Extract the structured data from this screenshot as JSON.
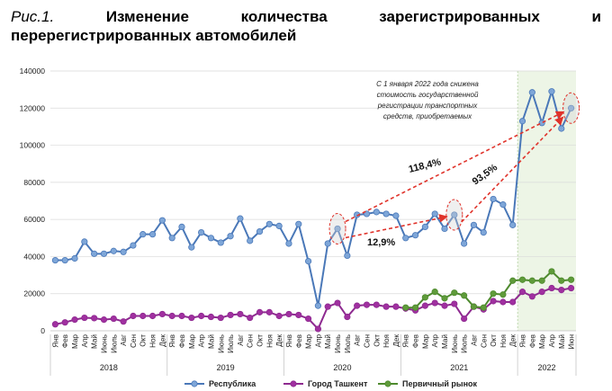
{
  "title": {
    "fig_num": "Рис.1.",
    "line1_words": [
      "Изменение",
      "количества",
      "зарегистрированных",
      "и"
    ],
    "line2": "перерегистрированных автомобилей"
  },
  "annotation": {
    "lines": [
      "С 1 января 2022 года снижена",
      "стоимость государственной",
      "регистрации транспортных",
      "средств, приобретаемых"
    ]
  },
  "growth_labels": {
    "top": "118,4%",
    "right": "93,5%",
    "bottom": "12,9%"
  },
  "chart_data": {
    "type": "line",
    "ylim": [
      0,
      140000
    ],
    "yticks": [
      0,
      20000,
      40000,
      60000,
      80000,
      100000,
      120000,
      140000
    ],
    "ytick_labels": [
      "0",
      "20000",
      "40000",
      "60000",
      "80000",
      "100000",
      "120000",
      "140000"
    ],
    "months": [
      "Янв",
      "Фев",
      "Мар",
      "Апр",
      "Май",
      "Июнь",
      "Июль",
      "Авг",
      "Сен",
      "Окт",
      "Ноя",
      "Дек",
      "Янв",
      "Фев",
      "Мар",
      "Апр",
      "Май",
      "Июнь",
      "Июль",
      "Авг",
      "Сен",
      "Окт",
      "Ноя",
      "Дек",
      "Янв",
      "Фев",
      "Мар",
      "Апр",
      "Май",
      "Июнь",
      "Июль",
      "Авг",
      "Сен",
      "Окт",
      "Ноя",
      "Дек",
      "Янв",
      "Фев",
      "Мар",
      "Апр",
      "Май",
      "Июнь",
      "Июль",
      "Авг",
      "Сен",
      "Окт",
      "Ноя",
      "Дек",
      "Янв",
      "Фев",
      "Мар",
      "Апр",
      "Май",
      "Июн"
    ],
    "years": [
      {
        "label": "2018",
        "start": 0,
        "count": 12
      },
      {
        "label": "2019",
        "start": 12,
        "count": 12
      },
      {
        "label": "2020",
        "start": 24,
        "count": 12
      },
      {
        "label": "2021",
        "start": 36,
        "count": 12
      },
      {
        "label": "2022",
        "start": 48,
        "count": 6
      }
    ],
    "shaded_region": {
      "start": 48,
      "end": 53,
      "color": "#edf5e6"
    },
    "series": [
      {
        "name": "Республика",
        "color": "#4a78b8",
        "fill": "#7ea6d8",
        "start": 0,
        "values": [
          38000,
          38000,
          39000,
          48000,
          41500,
          41500,
          43000,
          42500,
          46000,
          52000,
          52000,
          59500,
          50000,
          56000,
          45000,
          53000,
          50000,
          47500,
          51000,
          60500,
          48500,
          53500,
          57500,
          56500,
          47000,
          57500,
          37500,
          13500,
          47000,
          55000,
          40500,
          62500,
          63000,
          64000,
          63000,
          62000,
          50000,
          51500,
          56000,
          63000,
          55000,
          62500,
          47000,
          57000,
          53000,
          71000,
          68000,
          57000,
          113000,
          128500,
          112000,
          129000,
          109000,
          120000
        ]
      },
      {
        "name": "Город Ташкент",
        "color": "#8e2a90",
        "fill": "#a030a0",
        "start": 0,
        "values": [
          3500,
          4500,
          6000,
          7000,
          6800,
          6000,
          6500,
          5000,
          8000,
          8000,
          8000,
          9000,
          8000,
          8000,
          7000,
          8000,
          7500,
          7000,
          8500,
          9000,
          7000,
          10000,
          10000,
          8000,
          9000,
          8500,
          6500,
          1000,
          13000,
          15000,
          7500,
          13500,
          14000,
          14000,
          13000,
          13000,
          12000,
          11000,
          13500,
          15000,
          13500,
          14500,
          6500,
          13000,
          11500,
          16000,
          15500,
          15500,
          21000,
          18500,
          21000,
          23000,
          22000,
          23000
        ]
      },
      {
        "name": "Первичный рынок",
        "color": "#4e8a2e",
        "fill": "#5f9b3a",
        "start": 36,
        "values": [
          12500,
          12500,
          18000,
          21000,
          17500,
          20500,
          19000,
          13000,
          12500,
          20000,
          19500,
          27000,
          27500,
          27000,
          27000,
          32000,
          27000,
          27500
        ]
      }
    ]
  }
}
